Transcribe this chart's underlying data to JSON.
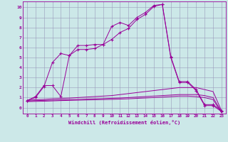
{
  "xlabel": "Windchill (Refroidissement éolien,°C)",
  "bg_color": "#cce8e8",
  "line_color": "#990099",
  "grid_color": "#9999bb",
  "xlim": [
    -0.5,
    23.5
  ],
  "ylim": [
    -0.6,
    10.6
  ],
  "xticks": [
    0,
    1,
    2,
    3,
    4,
    5,
    6,
    7,
    8,
    9,
    10,
    11,
    12,
    13,
    14,
    15,
    16,
    17,
    18,
    19,
    20,
    21,
    22,
    23
  ],
  "yticks": [
    0,
    1,
    2,
    3,
    4,
    5,
    6,
    7,
    8,
    9,
    10
  ],
  "lines": [
    {
      "x": [
        0,
        1,
        2,
        3,
        4,
        5,
        6,
        7,
        8,
        9,
        10,
        11,
        12,
        13,
        14,
        15,
        16,
        17,
        18,
        19,
        20,
        21,
        22,
        23
      ],
      "y": [
        0.7,
        1.1,
        2.2,
        2.2,
        1.1,
        5.2,
        6.2,
        6.2,
        6.3,
        6.3,
        8.1,
        8.5,
        8.2,
        9.0,
        9.5,
        10.2,
        10.3,
        5.1,
        2.6,
        2.6,
        1.8,
        0.3,
        0.3,
        -0.3
      ],
      "marker": "+"
    },
    {
      "x": [
        0,
        1,
        2,
        3,
        4,
        5,
        6,
        7,
        8,
        9,
        10,
        11,
        12,
        13,
        14,
        15,
        16,
        17,
        18,
        19,
        20,
        21,
        22,
        23
      ],
      "y": [
        0.7,
        1.0,
        2.1,
        4.5,
        5.4,
        5.2,
        5.8,
        5.8,
        5.9,
        6.3,
        6.8,
        7.5,
        7.9,
        8.8,
        9.3,
        10.1,
        10.3,
        5.0,
        2.5,
        2.5,
        1.7,
        0.2,
        0.2,
        -0.4
      ],
      "marker": "+"
    },
    {
      "x": [
        0,
        1,
        2,
        3,
        4,
        5,
        6,
        7,
        8,
        9,
        10,
        11,
        12,
        13,
        14,
        15,
        16,
        17,
        18,
        19,
        20,
        21,
        22,
        23
      ],
      "y": [
        0.7,
        0.8,
        0.82,
        0.88,
        0.92,
        0.95,
        1.0,
        1.05,
        1.1,
        1.15,
        1.2,
        1.3,
        1.4,
        1.5,
        1.6,
        1.7,
        1.8,
        1.9,
        2.0,
        2.0,
        2.0,
        1.8,
        1.6,
        -0.3
      ],
      "marker": null
    },
    {
      "x": [
        0,
        1,
        2,
        3,
        4,
        5,
        6,
        7,
        8,
        9,
        10,
        11,
        12,
        13,
        14,
        15,
        16,
        17,
        18,
        19,
        20,
        21,
        22,
        23
      ],
      "y": [
        0.65,
        0.7,
        0.72,
        0.75,
        0.78,
        0.8,
        0.82,
        0.85,
        0.88,
        0.9,
        0.93,
        0.96,
        1.0,
        1.05,
        1.1,
        1.15,
        1.2,
        1.25,
        1.3,
        1.3,
        1.3,
        1.2,
        1.0,
        -0.4
      ],
      "marker": null
    },
    {
      "x": [
        0,
        1,
        2,
        3,
        4,
        5,
        6,
        7,
        8,
        9,
        10,
        11,
        12,
        13,
        14,
        15,
        16,
        17,
        18,
        19,
        20,
        21,
        22,
        23
      ],
      "y": [
        0.6,
        0.62,
        0.64,
        0.67,
        0.7,
        0.72,
        0.74,
        0.76,
        0.78,
        0.8,
        0.82,
        0.85,
        0.88,
        0.92,
        0.96,
        1.0,
        1.05,
        1.1,
        1.15,
        1.15,
        1.1,
        1.0,
        0.8,
        -0.5
      ],
      "marker": null
    }
  ]
}
